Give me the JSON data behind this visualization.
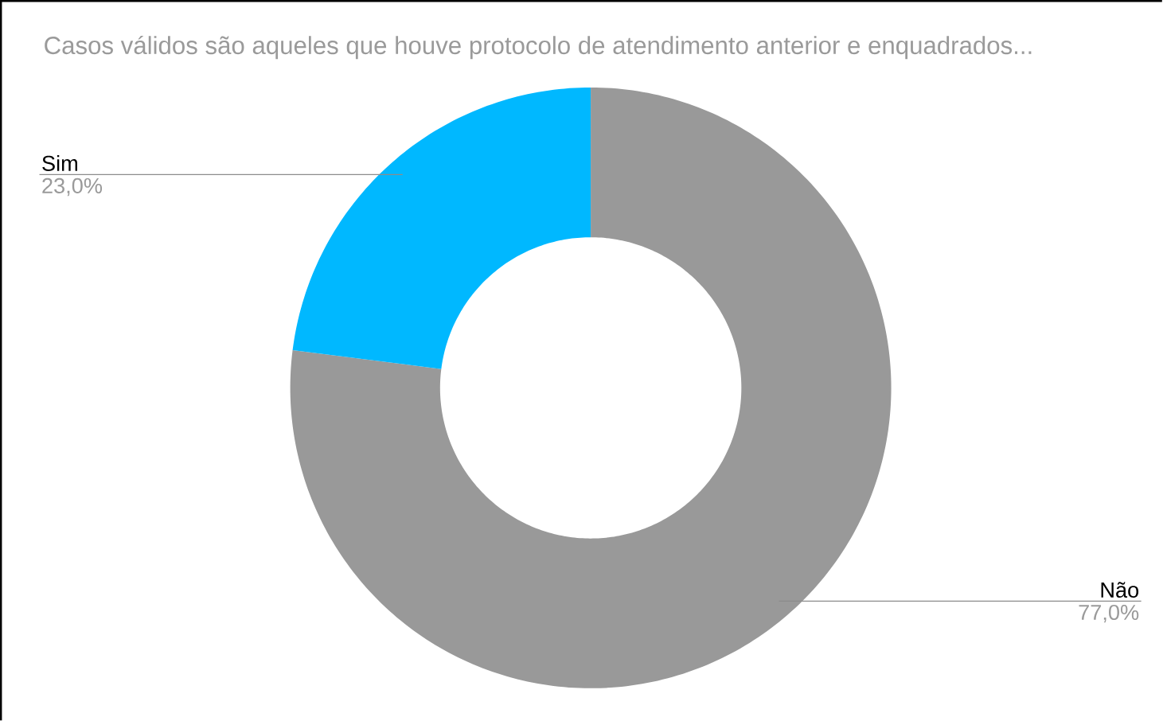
{
  "chart_data": {
    "type": "donut",
    "title": "Casos válidos são aqueles que houve protocolo de atendimento anterior e enquadrados...",
    "categories": [
      "Não",
      "Sim"
    ],
    "values": [
      77.0,
      23.0
    ],
    "colors": [
      "#999999",
      "#00b8ff"
    ],
    "value_labels": [
      "77,0%",
      "23,0%"
    ]
  }
}
